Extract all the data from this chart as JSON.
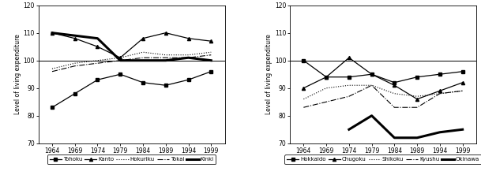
{
  "years": [
    1964,
    1969,
    1974,
    1979,
    1984,
    1989,
    1994,
    1999
  ],
  "left_chart": {
    "ylabel": "Level of living expenditure",
    "ylim": [
      70,
      120
    ],
    "yticks": [
      70,
      80,
      90,
      100,
      110,
      120
    ],
    "series": {
      "Tohoku": [
        83,
        88,
        93,
        95,
        92,
        91,
        93,
        96
      ],
      "Kanto": [
        110,
        108,
        105,
        101,
        108,
        110,
        108,
        107
      ],
      "Hokuriku": [
        97,
        99,
        100,
        101,
        103,
        102,
        102,
        103
      ],
      "Tokai": [
        96,
        98,
        99,
        100,
        101,
        101,
        101,
        102
      ],
      "Kinki": [
        110,
        109,
        108,
        100,
        100,
        100,
        101,
        100
      ]
    },
    "styles": {
      "Tohoku": {
        "color": "black",
        "lw": 0.9,
        "ls": "-",
        "marker": "s",
        "ms": 3
      },
      "Kanto": {
        "color": "black",
        "lw": 0.9,
        "ls": "-",
        "marker": "^",
        "ms": 3
      },
      "Hokuriku": {
        "color": "black",
        "lw": 0.8,
        "ls": ":",
        "marker": null,
        "ms": 0
      },
      "Tokai": {
        "color": "black",
        "lw": 0.8,
        "ls": "-.",
        "marker": null,
        "ms": 0
      },
      "Kinki": {
        "color": "black",
        "lw": 2.2,
        "ls": "-",
        "marker": null,
        "ms": 0
      }
    },
    "legend_order": [
      "Tohoku",
      "Kanto",
      "Hokuriku",
      "Tokai",
      "Kinki"
    ]
  },
  "right_chart": {
    "ylabel": "Level of living expenditure",
    "ylim": [
      70,
      120
    ],
    "yticks": [
      70,
      80,
      90,
      100,
      110,
      120
    ],
    "series": {
      "Hokkaido": [
        100,
        94,
        94,
        95,
        92,
        94,
        95,
        96
      ],
      "Chugoku": [
        90,
        94,
        101,
        95,
        91,
        86,
        89,
        92
      ],
      "Shikoku": [
        86,
        90,
        91,
        91,
        88,
        87,
        88,
        89
      ],
      "Kyushu": [
        83,
        85,
        87,
        91,
        83,
        83,
        88,
        89
      ],
      "Okinawa": [
        null,
        null,
        75,
        80,
        72,
        72,
        74,
        75
      ]
    },
    "styles": {
      "Hokkaido": {
        "color": "black",
        "lw": 0.9,
        "ls": "-",
        "marker": "s",
        "ms": 3
      },
      "Chugoku": {
        "color": "black",
        "lw": 0.9,
        "ls": "-",
        "marker": "^",
        "ms": 3
      },
      "Shikoku": {
        "color": "black",
        "lw": 0.8,
        "ls": ":",
        "marker": null,
        "ms": 0
      },
      "Kyushu": {
        "color": "black",
        "lw": 0.8,
        "ls": "-.",
        "marker": null,
        "ms": 0
      },
      "Okinawa": {
        "color": "black",
        "lw": 2.2,
        "ls": "-",
        "marker": null,
        "ms": 0
      }
    },
    "legend_order": [
      "Hokkaido",
      "Chugoku",
      "Shikoku",
      "Kyushu",
      "Okinawa"
    ]
  },
  "legend_labels_left": [
    "Tohoku",
    "Kanto",
    "Hokuriku",
    "Tokai",
    "Kinki"
  ],
  "legend_labels_right": [
    "Hokkaido",
    "Chugoku",
    "Shikoku",
    "Kyushu",
    "Okinawa"
  ],
  "figsize": [
    6.09,
    2.22
  ],
  "dpi": 100
}
